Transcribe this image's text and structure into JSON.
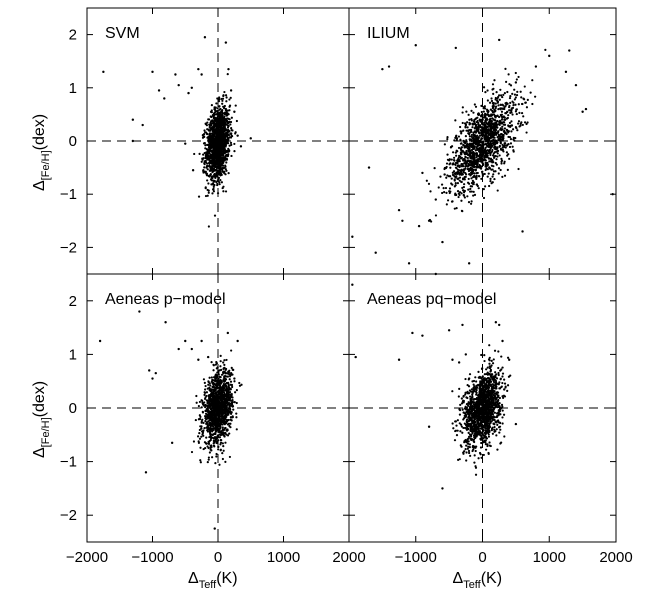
{
  "chart_data": [
    {
      "type": "scatter",
      "label": "SVM",
      "xlim": [
        -2000,
        2000
      ],
      "ylim": [
        -2.5,
        2.5
      ],
      "xticks": [
        -2000,
        -1000,
        0,
        1000,
        2000
      ],
      "yticks": [
        -2,
        -1,
        0,
        1,
        2
      ],
      "cluster": {
        "x_center": 0,
        "x_sd": 90,
        "y_center": -0.05,
        "y_sd": 0.35,
        "n": 1400,
        "correlation": 0.25
      },
      "outliers": {
        "x": [
          -1750,
          -1300,
          -1000,
          -900,
          -820,
          -650,
          -600,
          -500,
          -450,
          -400,
          -380,
          -300,
          -250,
          -200,
          120,
          160,
          200,
          250,
          300,
          350,
          500,
          -1300,
          -1150
        ],
        "y": [
          1.3,
          0.4,
          1.3,
          0.95,
          0.8,
          1.25,
          1.05,
          -0.05,
          0.9,
          1.0,
          -0.55,
          1.35,
          1.25,
          1.95,
          1.85,
          1.35,
          0.95,
          0.55,
          0.1,
          -0.1,
          0.05,
          0.0,
          0.3
        ]
      },
      "text": {
        "panel_label": "SVM",
        "ylabel_main": "Δ",
        "ylabel_sub": "[Fe/H]",
        "ylabel_unit": "(dex)",
        "xlabel_main": "",
        "xlabel_sub": "",
        "xlabel_unit": ""
      }
    },
    {
      "type": "scatter",
      "label": "ILIUM",
      "xlim": [
        -2000,
        2000
      ],
      "ylim": [
        -2.5,
        2.5
      ],
      "xticks": [
        -1000,
        0,
        1000,
        2000
      ],
      "yticks": [],
      "cluster": {
        "x_center": 0,
        "x_sd": 260,
        "y_center": -0.05,
        "y_sd": 0.45,
        "n": 1400,
        "correlation": 0.6
      },
      "outliers": {
        "x": [
          -1950,
          -1700,
          -1600,
          -1500,
          -1400,
          -1250,
          -1200,
          -1100,
          -950,
          -900,
          -800,
          -700,
          -600,
          -400,
          -200,
          250,
          500,
          600,
          800,
          1000,
          1250,
          1300,
          1400,
          1500,
          1550,
          1950,
          -1000,
          -700
        ],
        "y": [
          -1.8,
          -0.5,
          -2.1,
          1.35,
          1.4,
          -1.3,
          -1.5,
          -2.3,
          -1.6,
          -0.6,
          -1.5,
          -1.1,
          -1.9,
          1.75,
          -2.3,
          1.9,
          1.1,
          -1.7,
          1.4,
          1.6,
          1.3,
          1.7,
          1.05,
          0.55,
          0.6,
          -1.0,
          1.8,
          -2.5
        ]
      },
      "text": {
        "panel_label": "ILIUM",
        "ylabel_main": "",
        "ylabel_sub": "",
        "ylabel_unit": "",
        "xlabel_main": "",
        "xlabel_sub": "",
        "xlabel_unit": ""
      }
    },
    {
      "type": "scatter",
      "label": "Aeneas p-model",
      "xlim": [
        -2000,
        2000
      ],
      "ylim": [
        -2.5,
        2.5
      ],
      "xticks": [
        -2000,
        -1000,
        0,
        1000,
        2000
      ],
      "yticks": [
        -2,
        -1,
        0,
        1,
        2
      ],
      "cluster": {
        "x_center": 0,
        "x_sd": 110,
        "y_center": 0.0,
        "y_sd": 0.33,
        "n": 1300,
        "correlation": 0.3
      },
      "outliers": {
        "x": [
          -1800,
          -1200,
          -1050,
          -1000,
          -950,
          -800,
          -700,
          -600,
          -500,
          -400,
          -300,
          -250,
          -150,
          -50,
          150,
          200,
          250,
          300,
          -1100
        ],
        "y": [
          1.25,
          1.8,
          0.7,
          0.55,
          0.65,
          1.6,
          -0.65,
          1.1,
          1.25,
          1.1,
          0.9,
          1.25,
          0.95,
          -2.25,
          1.4,
          0.65,
          0.55,
          1.25,
          -1.2
        ]
      },
      "text": {
        "panel_label": "Aeneas p−model",
        "ylabel_main": "Δ",
        "ylabel_sub": "[Fe/H]",
        "ylabel_unit": "(dex)",
        "xlabel_main": "Δ",
        "xlabel_sub": "Teff",
        "xlabel_unit": "(K)"
      }
    },
    {
      "type": "scatter",
      "label": "Aeneas pq-model",
      "xlim": [
        -2000,
        2000
      ],
      "ylim": [
        -2.5,
        2.5
      ],
      "xticks": [
        -1000,
        0,
        1000,
        2000
      ],
      "yticks": [],
      "cluster": {
        "x_center": 0,
        "x_sd": 140,
        "y_center": 0.0,
        "y_sd": 0.35,
        "n": 1400,
        "correlation": 0.35
      },
      "outliers": {
        "x": [
          -1950,
          -1900,
          -1050,
          -900,
          -800,
          -600,
          -500,
          -450,
          -400,
          -350,
          -300,
          -250,
          -200,
          200,
          250,
          300,
          400,
          500,
          -1250
        ],
        "y": [
          2.3,
          0.95,
          1.4,
          1.35,
          -0.35,
          -1.5,
          1.45,
          0.9,
          -0.25,
          0.85,
          1.55,
          1.0,
          0.55,
          1.6,
          1.55,
          1.25,
          0.9,
          -0.3,
          0.9
        ]
      },
      "text": {
        "panel_label": "Aeneas pq−model",
        "ylabel_main": "",
        "ylabel_sub": "",
        "ylabel_unit": "",
        "xlabel_main": "Δ",
        "xlabel_sub": "Teff",
        "xlabel_unit": "(K)"
      }
    }
  ]
}
